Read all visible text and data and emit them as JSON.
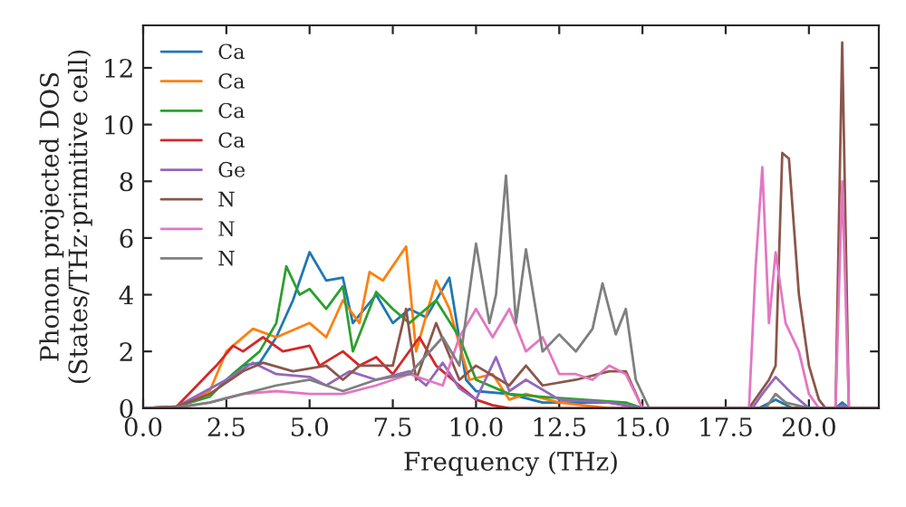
{
  "chart_data": {
    "type": "line",
    "xlabel": "Frequency (THz)",
    "ylabel": "Phonon projected DOS\n(States/THz·primitive cell)",
    "xlim": [
      0,
      22.1
    ],
    "ylim": [
      0,
      13.5
    ],
    "xticks": [
      {
        "value": 0,
        "label": "0.0"
      },
      2.5,
      {
        "value": 5,
        "label": "5.0"
      },
      7.5,
      {
        "value": 10,
        "label": "10.0"
      },
      12.5,
      {
        "value": 15,
        "label": "15.0"
      },
      17.5,
      {
        "value": 20,
        "label": "20.0"
      }
    ],
    "yticks": [
      0,
      2,
      4,
      6,
      8,
      10,
      12
    ],
    "grid": false,
    "legend": "top left",
    "marker": "none",
    "line_style": "solid",
    "series": [
      {
        "name": "Ca",
        "color": "#1f77b4",
        "x": [
          2.5,
          3,
          3.5,
          4,
          4.5,
          5,
          5.5,
          6,
          6.3,
          7,
          7.5,
          8,
          8.5,
          9.2,
          9.7,
          10,
          11,
          12,
          14,
          15,
          18.5,
          19,
          19.5,
          20.8,
          21,
          21.2,
          22.1
        ],
        "values": [
          1.0,
          1.5,
          1.6,
          2.5,
          3.8,
          5.5,
          4.5,
          4.6,
          3.0,
          4.0,
          3.0,
          3.5,
          3.2,
          4.6,
          1.0,
          0.6,
          0.5,
          0.2,
          0.2,
          0,
          0,
          0.3,
          0,
          0,
          0.2,
          0,
          0
        ]
      },
      {
        "name": "Ca",
        "color": "#ff7f0e",
        "x": [
          0,
          1,
          2,
          2.5,
          3.3,
          4,
          5,
          5.5,
          6,
          6.5,
          6.8,
          7.2,
          7.9,
          8.2,
          8.8,
          9.2,
          9.8,
          10.5,
          11,
          11.5,
          12.5,
          14,
          22.1
        ],
        "values": [
          0,
          0.05,
          0.6,
          2.0,
          2.8,
          2.5,
          3.0,
          2.5,
          3.8,
          3.0,
          4.8,
          4.5,
          5.7,
          2.0,
          4.5,
          3.5,
          1.0,
          1.2,
          0.3,
          0.5,
          0.2,
          0,
          0
        ]
      },
      {
        "name": "Ca",
        "color": "#2ca02c",
        "x": [
          0,
          1,
          2,
          2.5,
          3.5,
          4,
          4.3,
          4.7,
          5,
          5.5,
          6,
          6.3,
          7,
          7.5,
          8,
          8.8,
          9.5,
          10,
          11,
          12,
          14.5,
          15,
          22.1
        ],
        "values": [
          0,
          0.05,
          0.4,
          1.0,
          2.0,
          3.0,
          5.0,
          4.0,
          4.2,
          3.5,
          4.3,
          2.0,
          4.1,
          3.5,
          3.0,
          3.8,
          2.5,
          1.0,
          0.5,
          0.4,
          0.2,
          0,
          0
        ]
      },
      {
        "name": "Ca",
        "color": "#d62728",
        "x": [
          0,
          1,
          2.2,
          2.7,
          3,
          3.6,
          4.2,
          5,
          5.3,
          6,
          6.5,
          7,
          7.5,
          8.3,
          8.8,
          9.5,
          10,
          10.5,
          11,
          22.1
        ],
        "values": [
          0,
          0.05,
          1.5,
          2.2,
          2.0,
          2.5,
          2.0,
          2.2,
          1.5,
          2.0,
          1.5,
          1.8,
          1.2,
          2.5,
          1.5,
          0.8,
          0.3,
          0.1,
          0,
          0
        ]
      },
      {
        "name": "Ge",
        "color": "#9467bd",
        "x": [
          0,
          1,
          2.5,
          3.3,
          4,
          5,
          5.5,
          6.2,
          7,
          8,
          8.5,
          9,
          9.5,
          10,
          10.6,
          11,
          11.5,
          12.5,
          14,
          15,
          18.3,
          18.6,
          19,
          19.5,
          20,
          20.8,
          21,
          21.2,
          22.1
        ],
        "values": [
          0,
          0.05,
          1.0,
          1.6,
          1.2,
          1.1,
          0.8,
          1.3,
          1.0,
          1.3,
          0.8,
          1.6,
          0.7,
          0.3,
          1.8,
          0.6,
          1.0,
          0.3,
          0.2,
          0,
          0,
          0.5,
          1.1,
          0.5,
          0,
          0,
          0.1,
          0,
          0
        ]
      },
      {
        "name": "N",
        "color": "#8c564b",
        "x": [
          0,
          1,
          2,
          3,
          3.6,
          4.5,
          5.5,
          6,
          6.5,
          7.5,
          7.9,
          8.2,
          8.8,
          9.5,
          10,
          11,
          11.5,
          12,
          13,
          14,
          14.5,
          15,
          18.2,
          18.8,
          19,
          19.2,
          19.4,
          19.7,
          20,
          20.3,
          20.5,
          20.8,
          21,
          21.2,
          22.1
        ],
        "values": [
          0,
          0.05,
          0.5,
          1.3,
          1.6,
          1.3,
          1.5,
          1.0,
          1.5,
          1.5,
          3.5,
          1.0,
          3.0,
          1.0,
          1.5,
          0.8,
          1.5,
          0.8,
          1.0,
          1.3,
          1.3,
          0,
          0,
          1.0,
          1.5,
          9.0,
          8.8,
          4.0,
          1.5,
          0.3,
          0,
          0,
          12.9,
          0,
          0
        ]
      },
      {
        "name": "N",
        "color": "#e377c2",
        "x": [
          0,
          1,
          2,
          3,
          4,
          5,
          6,
          7,
          8,
          9,
          9.5,
          10,
          10.5,
          11,
          11.5,
          12,
          12.5,
          13,
          13.5,
          14,
          14.5,
          15,
          18.2,
          18.4,
          18.6,
          18.8,
          19,
          19.3,
          19.7,
          20,
          20.3,
          20.8,
          21,
          21.2,
          22.1
        ],
        "values": [
          0,
          0.02,
          0.2,
          0.5,
          0.6,
          0.5,
          0.5,
          0.8,
          1.2,
          0.8,
          2.5,
          3.5,
          2.5,
          3.5,
          2.0,
          2.5,
          1.2,
          1.2,
          1.0,
          1.5,
          1.2,
          0,
          0,
          5.0,
          8.5,
          3.0,
          5.5,
          3.0,
          2.0,
          0.5,
          0,
          0,
          8.0,
          0,
          0
        ]
      },
      {
        "name": "N",
        "color": "#7f7f7f",
        "x": [
          0,
          1,
          2,
          3,
          4,
          5,
          6,
          7,
          8,
          9,
          9.5,
          10,
          10.4,
          10.6,
          10.9,
          11.2,
          11.5,
          12,
          12.5,
          13,
          13.5,
          13.8,
          14.2,
          14.5,
          14.8,
          15.2,
          18.7,
          19,
          19.3,
          20,
          22.1
        ],
        "values": [
          0,
          0.02,
          0.2,
          0.5,
          0.8,
          1.0,
          0.6,
          1.0,
          1.2,
          2.5,
          1.5,
          5.8,
          3.0,
          4.0,
          8.2,
          3.0,
          5.6,
          2.0,
          2.6,
          2.0,
          2.8,
          4.4,
          2.6,
          3.5,
          1.0,
          0,
          0,
          0.5,
          0.2,
          0,
          0
        ]
      }
    ]
  }
}
